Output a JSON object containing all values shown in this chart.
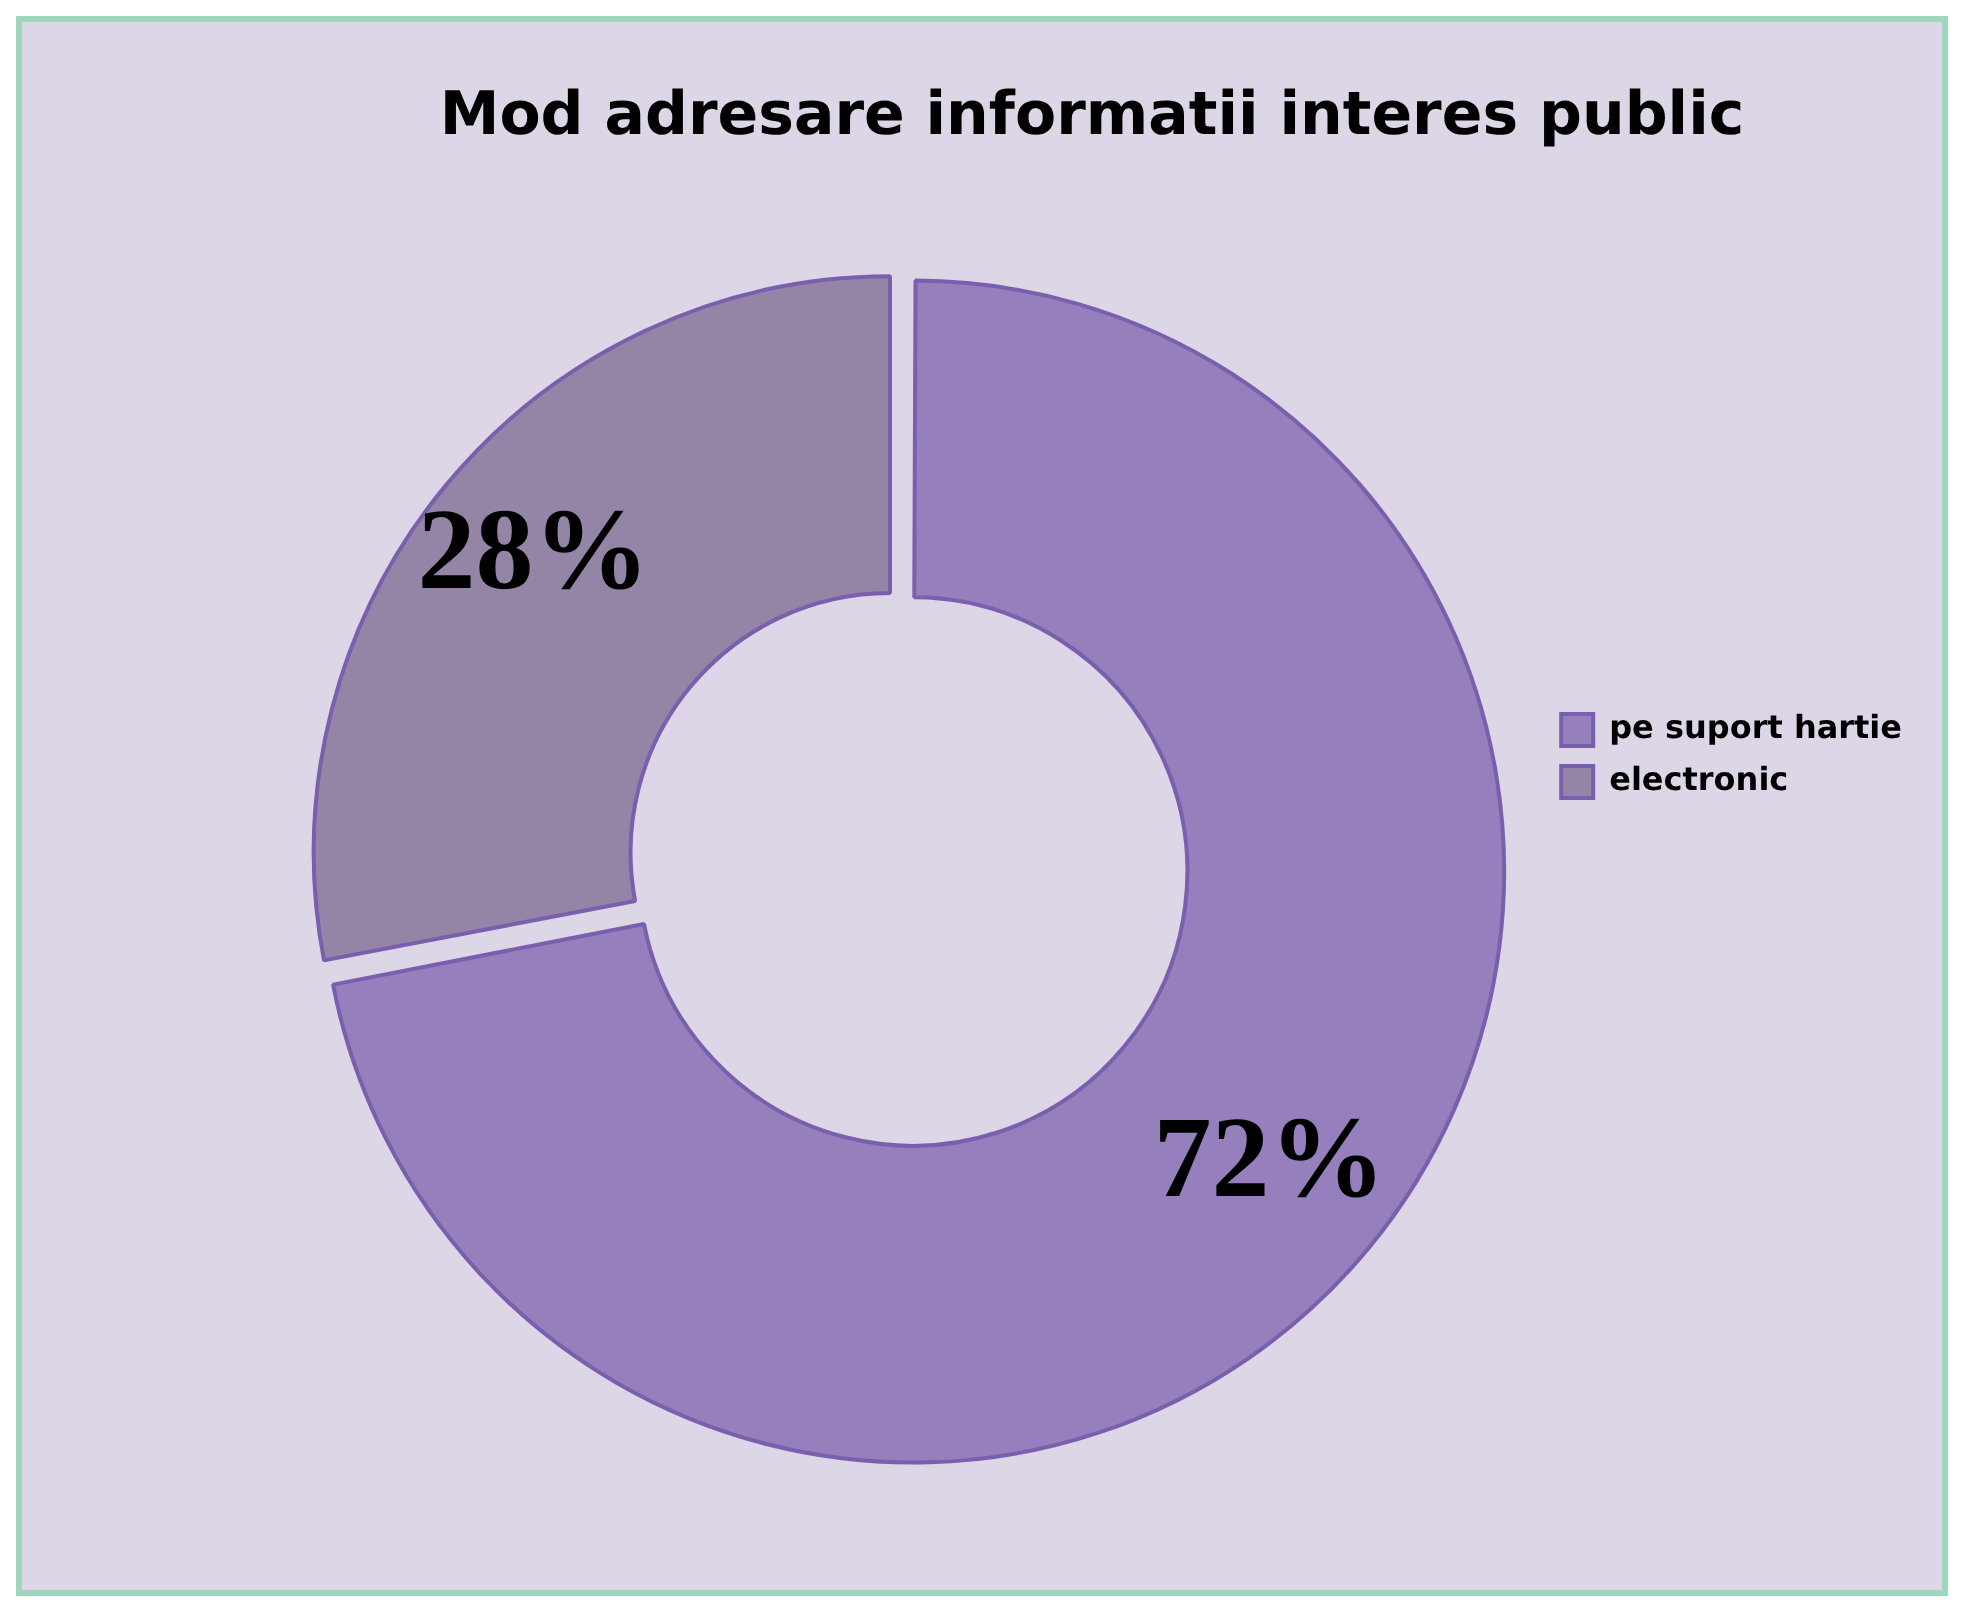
{
  "chart_data": {
    "type": "donut",
    "title": "Mod adresare informatii interes public",
    "categories": [
      "pe suport hartie",
      "electronic"
    ],
    "values": [
      72,
      28
    ],
    "colors": [
      "#957fbc",
      "#9484a6"
    ],
    "value_labels": [
      "72%",
      "28%"
    ],
    "legend": "right"
  }
}
